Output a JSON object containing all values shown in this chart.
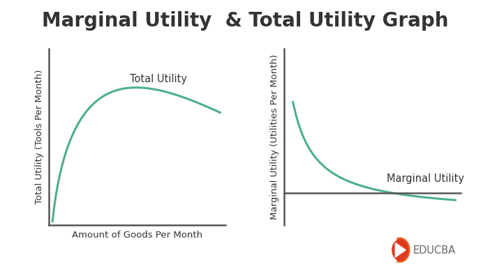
{
  "title": "Marginal Utility  & Total Utility Graph",
  "title_fontsize": 20,
  "title_fontweight": "bold",
  "background_color": "#ffffff",
  "curve_color": "#4CAF8A",
  "curve_linewidth": 2.2,
  "left_ylabel": "Total Utility (Tools Per Month)",
  "left_xlabel": "Amount of Goods Per Month",
  "left_label": "Total Utility",
  "right_ylabel": "Marginal Utility (Utilities Per Month)",
  "right_label": "Marginal Utility",
  "axis_color": "#555555",
  "text_color": "#333333",
  "label_fontsize": 10.5,
  "axis_label_fontsize": 9.5,
  "educba_text": "EDUCBA",
  "educba_text_color": "#666666",
  "educba_logo_color": "#e03a1e",
  "educba_logo_orange": "#f07030"
}
